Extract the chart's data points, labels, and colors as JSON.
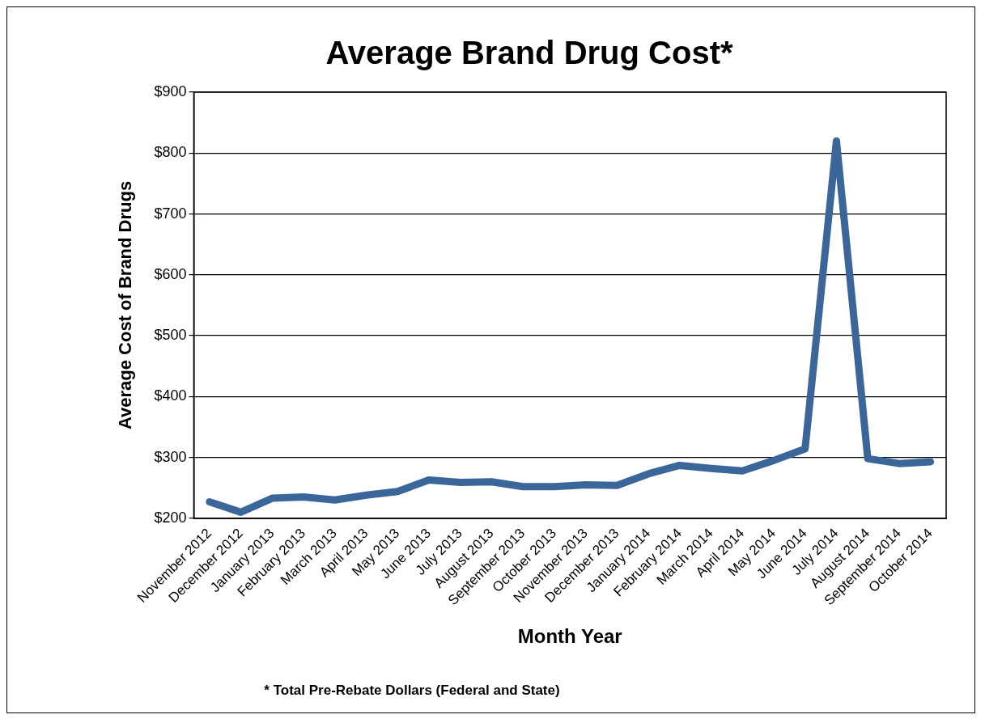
{
  "chart_data": {
    "type": "line",
    "title": "Average Brand Drug Cost*",
    "xlabel": "Month Year",
    "ylabel": "Average Cost of Brand Drugs",
    "categories": [
      "November 2012",
      "December 2012",
      "January 2013",
      "February 2013",
      "March 2013",
      "April 2013",
      "May 2013",
      "June 2013",
      "July 2013",
      "August 2013",
      "September 2013",
      "October 2013",
      "November 2013",
      "December 2013",
      "January 2014",
      "February 2014",
      "March 2014",
      "April 2014",
      "May 2014",
      "June 2014",
      "July 2014",
      "August 2014",
      "September 2014",
      "October 2014"
    ],
    "series": [
      {
        "color": "#3a6699",
        "values": [
          227,
          210,
          233,
          235,
          230,
          238,
          244,
          263,
          259,
          260,
          252,
          252,
          255,
          254,
          273,
          287,
          282,
          278,
          295,
          314,
          820,
          298,
          290,
          293
        ]
      }
    ],
    "ylim": [
      200,
      900
    ],
    "yticks": [
      {
        "value": 200,
        "label": "$200"
      },
      {
        "value": 300,
        "label": "$300"
      },
      {
        "value": 400,
        "label": "$400"
      },
      {
        "value": 500,
        "label": "$500"
      },
      {
        "value": 600,
        "label": "$600"
      },
      {
        "value": 700,
        "label": "$700"
      },
      {
        "value": 800,
        "label": "$800"
      },
      {
        "value": 900,
        "label": "$900"
      }
    ],
    "grid": "y",
    "legend": false,
    "marker": "none",
    "line_style": "solid",
    "annotations": [
      "* Total Pre-Rebate Dollars (Federal and State)"
    ]
  }
}
